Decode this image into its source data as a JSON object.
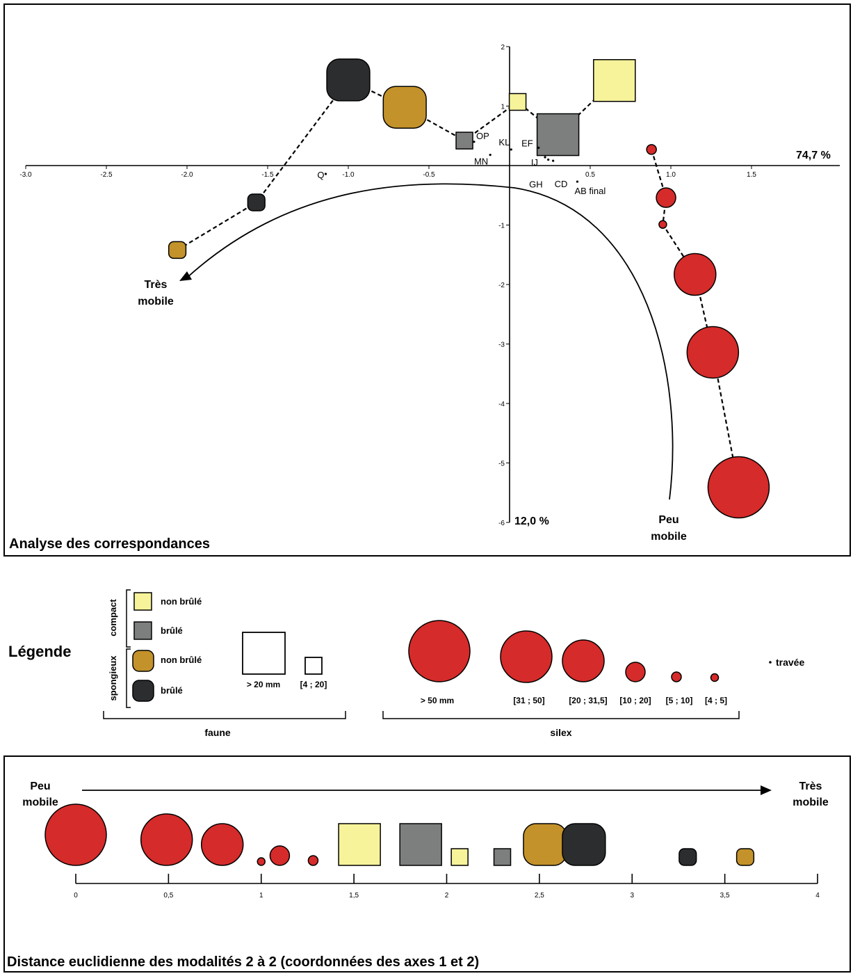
{
  "colors": {
    "silex": "#d52b2a",
    "faune_compact_non_brule": "#f7f39a",
    "faune_compact_brule": "#7d7e7e",
    "faune_spongieux_non_brule": "#c3922a",
    "faune_spongieux_brule": "#2b2d2e"
  },
  "chart_data": [
    {
      "type": "scatter",
      "title": "Analyse des correspondances",
      "xlabel": "74,7 %",
      "ylabel": "12,0 %",
      "xlim": [
        -3.0,
        2.0
      ],
      "ylim": [
        -6,
        2
      ],
      "x_ticks": [
        {
          "v": -3.0,
          "label": "-3.0"
        },
        {
          "v": -2.5,
          "label": "-2.5"
        },
        {
          "v": -2.0,
          "label": "-2.0"
        },
        {
          "v": -1.5,
          "label": "-1.5"
        },
        {
          "v": -1.0,
          "label": "-1.0"
        },
        {
          "v": -0.5,
          "label": "-0.5"
        },
        {
          "v": 0.5,
          "label": "0.5"
        },
        {
          "v": 1.0,
          "label": "1.0"
        },
        {
          "v": 1.5,
          "label": "1.5"
        }
      ],
      "y_ticks": [
        {
          "v": 2,
          "label": "2"
        },
        {
          "v": 1,
          "label": "1"
        },
        {
          "v": -1,
          "label": "-1"
        },
        {
          "v": -2,
          "label": "-2"
        },
        {
          "v": -3,
          "label": "-3"
        },
        {
          "v": -4,
          "label": "-4"
        },
        {
          "v": -5,
          "label": "-5"
        },
        {
          "v": -6,
          "label": "-6"
        }
      ],
      "travees": [
        {
          "label": "OP",
          "x": -0.22,
          "y": 0.4
        },
        {
          "label": "KL",
          "x": 0.01,
          "y": 0.27
        },
        {
          "label": "MN",
          "x": -0.12,
          "y": 0.18
        },
        {
          "label": "EF",
          "x": 0.18,
          "y": 0.3
        },
        {
          "label": "IJ",
          "x": 0.22,
          "y": 0.14
        },
        {
          "label": "GH",
          "x": 0.24,
          "y": 0.1
        },
        {
          "label": "CD",
          "x": 0.27,
          "y": 0.08
        },
        {
          "label": "AB final",
          "x": 0.42,
          "y": -0.27
        },
        {
          "label": "Q",
          "x": -1.14,
          "y": -0.14
        }
      ],
      "series": [
        {
          "name": "faune",
          "points": [
            {
              "x": -2.06,
              "y": -1.42,
              "cat": "spongieux non brûlé",
              "size": "[4 ; 20]"
            },
            {
              "x": -1.57,
              "y": -0.62,
              "cat": "spongieux brûlé",
              "size": "[4 ; 20]"
            },
            {
              "x": -1.0,
              "y": 1.44,
              "cat": "spongieux brûlé",
              "size": "> 20 mm"
            },
            {
              "x": -0.65,
              "y": 0.98,
              "cat": "spongieux non brûlé",
              "size": "> 20 mm"
            },
            {
              "x": -0.28,
              "y": 0.42,
              "cat": "compact brûlé",
              "size": "[4 ; 20]"
            },
            {
              "x": 0.05,
              "y": 1.07,
              "cat": "compact non brûlé",
              "size": "[4 ; 20]"
            },
            {
              "x": 0.3,
              "y": 0.52,
              "cat": "compact brûlé",
              "size": "> 20 mm"
            },
            {
              "x": 0.65,
              "y": 1.43,
              "cat": "compact non brûlé",
              "size": "> 20 mm"
            }
          ]
        },
        {
          "name": "silex",
          "points": [
            {
              "x": 0.88,
              "y": 0.27,
              "size": "[5 ; 10]"
            },
            {
              "x": 0.97,
              "y": -0.54,
              "size": "[10 ; 20]"
            },
            {
              "x": 0.95,
              "y": -0.99,
              "size": "[4 ; 5]"
            },
            {
              "x": 1.15,
              "y": -1.83,
              "size": "[20 ; 31,5]"
            },
            {
              "x": 1.26,
              "y": -3.14,
              "size": "[31 ; 50]"
            },
            {
              "x": 1.42,
              "y": -5.41,
              "size": "> 50 mm"
            }
          ]
        }
      ],
      "annotations": {
        "left_line1": "Très",
        "left_line2": "mobile",
        "right_line1": "Peu",
        "right_line2": "mobile"
      }
    },
    {
      "type": "scatter",
      "title": "Distance euclidienne des modalités 2 à 2 (coordonnées des axes 1 et 2)",
      "xlim": [
        0,
        4
      ],
      "x_ticks": [
        {
          "v": 0,
          "label": "0"
        },
        {
          "v": 0.5,
          "label": "0,5"
        },
        {
          "v": 1,
          "label": "1"
        },
        {
          "v": 1.5,
          "label": "1,5"
        },
        {
          "v": 2,
          "label": "2"
        },
        {
          "v": 2.5,
          "label": "2,5"
        },
        {
          "v": 3,
          "label": "3"
        },
        {
          "v": 3.5,
          "label": "3,5"
        },
        {
          "v": 4,
          "label": "4"
        }
      ],
      "points": [
        {
          "x": 0,
          "type": "silex",
          "size": "> 50 mm"
        },
        {
          "x": 0.49,
          "type": "silex",
          "size": "[31 ; 50]"
        },
        {
          "x": 0.79,
          "type": "silex",
          "size": "[20 ; 31,5]"
        },
        {
          "x": 1.0,
          "type": "silex",
          "size": "[4 ; 5]"
        },
        {
          "x": 1.1,
          "type": "silex",
          "size": "[10 ; 20]"
        },
        {
          "x": 1.28,
          "type": "silex",
          "size": "[5 ; 10]"
        },
        {
          "x": 1.53,
          "type": "faune",
          "cat": "compact non brûlé",
          "size": "> 20 mm"
        },
        {
          "x": 1.86,
          "type": "faune",
          "cat": "compact brûlé",
          "size": "> 20 mm"
        },
        {
          "x": 2.07,
          "type": "faune",
          "cat": "compact non brûlé",
          "size": "[4 ; 20]"
        },
        {
          "x": 2.3,
          "type": "faune",
          "cat": "compact brûlé",
          "size": "[4 ; 20]"
        },
        {
          "x": 2.53,
          "type": "faune",
          "cat": "spongieux non brûlé",
          "size": "> 20 mm"
        },
        {
          "x": 2.74,
          "type": "faune",
          "cat": "spongieux brûlé",
          "size": "> 20 mm"
        },
        {
          "x": 3.3,
          "type": "faune",
          "cat": "spongieux brûlé",
          "size": "[4 ; 20]"
        },
        {
          "x": 3.61,
          "type": "faune",
          "cat": "spongieux non brûlé",
          "size": "[4 ; 20]"
        }
      ],
      "annotations": {
        "left_line1": "Peu",
        "left_line2": "mobile",
        "right_line1": "Très",
        "right_line2": "mobile"
      }
    }
  ],
  "legend": {
    "title": "Légende",
    "group_compact": "compact",
    "group_spongieux": "spongieux",
    "non_brule": "non brûlé",
    "brule": "brûlé",
    "faune_size_large": "> 20 mm",
    "faune_size_small": "[4 ; 20]",
    "faune_label": "faune",
    "silex_label": "silex",
    "silex_sizes": [
      "> 50 mm",
      "[31 ; 50]",
      "[20 ; 31,5]",
      "[10 ; 20]",
      "[5 ; 10]",
      "[4 ; 5]"
    ],
    "travee_label": "travée"
  }
}
